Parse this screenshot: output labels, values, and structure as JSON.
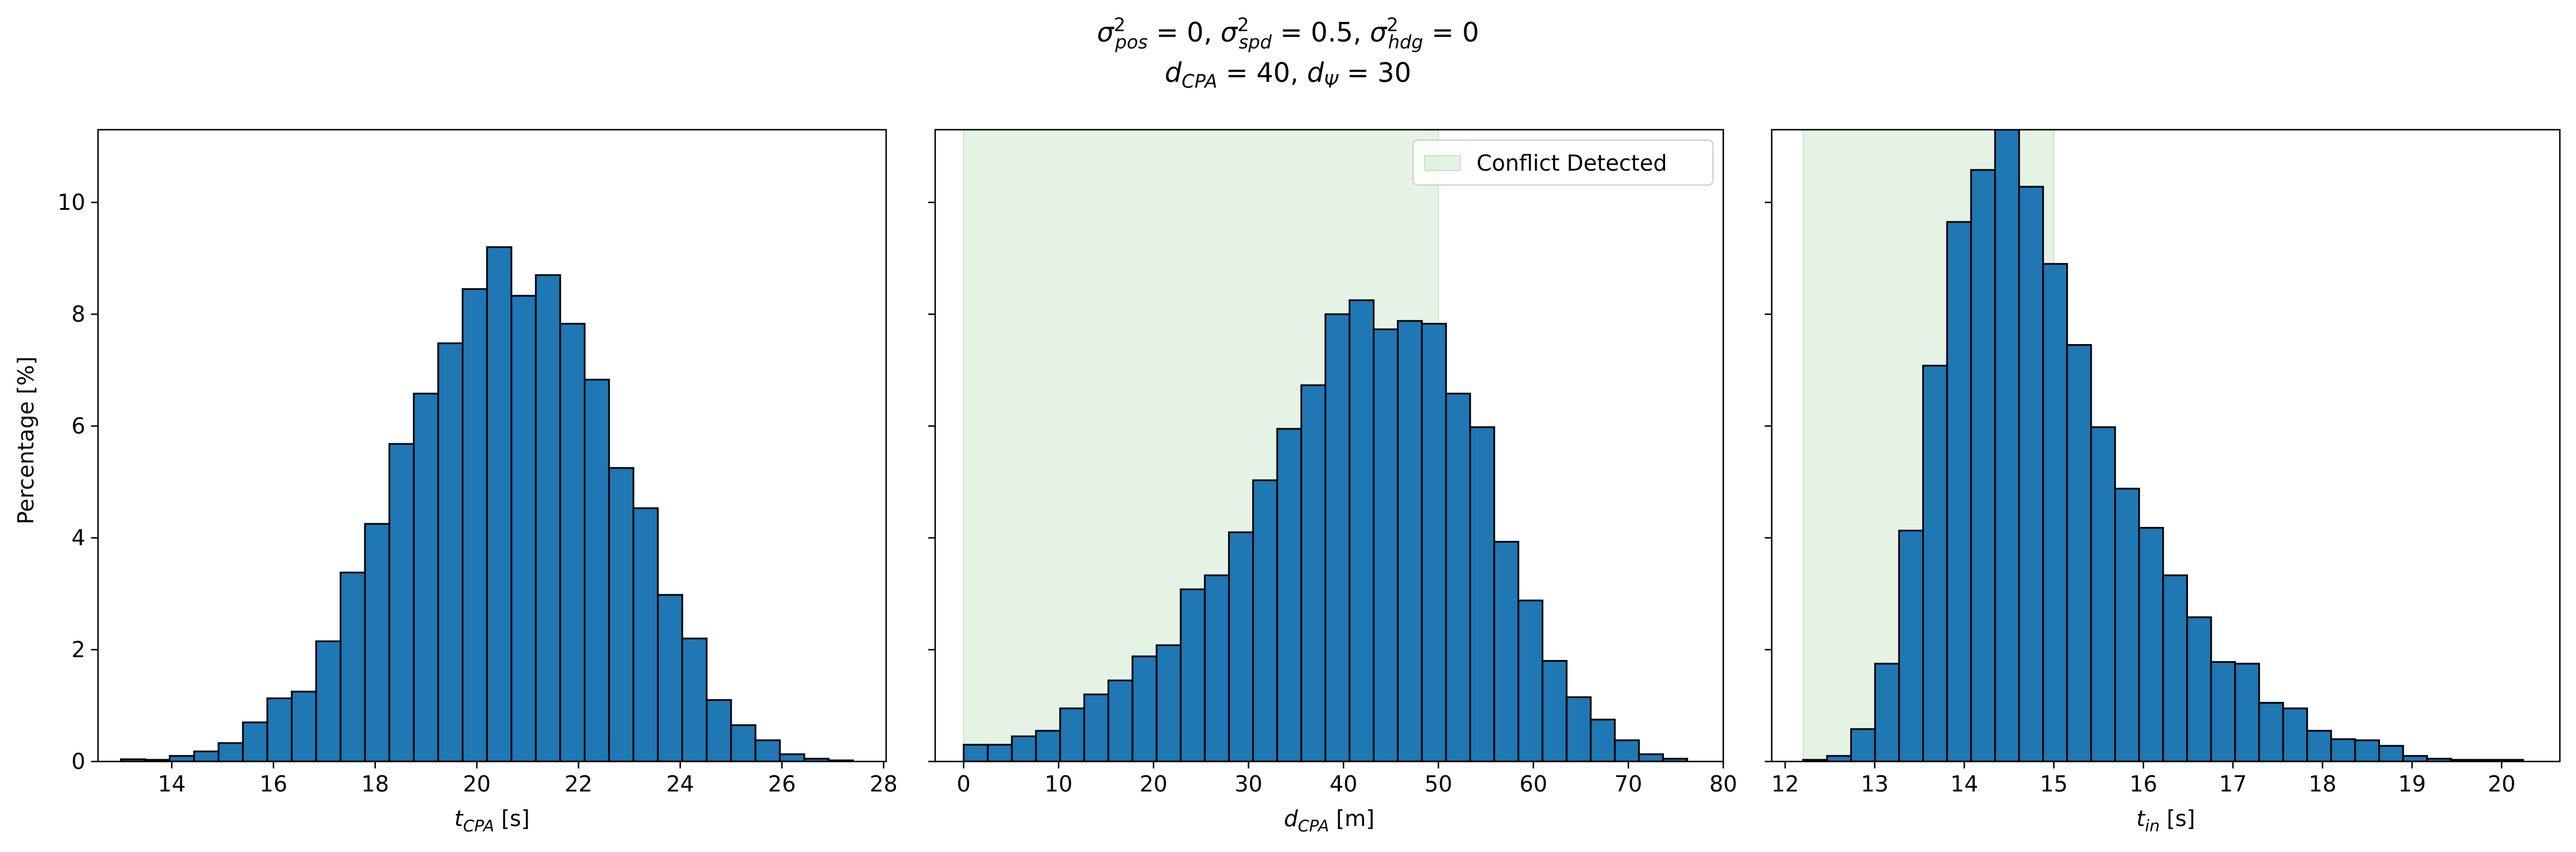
{
  "figure": {
    "title_line1": [
      {
        "base": "σ",
        "sup": "2",
        "sub": "pos",
        "tail": " = 0, "
      },
      {
        "base": "σ",
        "sup": "2",
        "sub": "spd",
        "tail": " = 0.5, "
      },
      {
        "base": "σ",
        "sup": "2",
        "sub": "hdg",
        "tail": " = 0"
      }
    ],
    "title_line2": [
      {
        "base": "d",
        "sub": "CPA",
        "tail": " = 40, "
      },
      {
        "base": "d",
        "sub": "Ψ",
        "tail": " = 30"
      }
    ],
    "ylabel": "Percentage [%]",
    "shade_color": "#2ca02c",
    "bar_color": "#1f77b4",
    "edge_color": "#000000"
  },
  "chart_data": [
    {
      "type": "bar",
      "xlabel": {
        "base": "t",
        "sub": "CPA",
        "unit": " [s]"
      },
      "ylabel": "Percentage [%]",
      "xlim": [
        12.55,
        28.05
      ],
      "ylim": [
        0,
        11.3
      ],
      "xticks": [
        14,
        16,
        18,
        20,
        22,
        24,
        26,
        28
      ],
      "yticks": [
        0,
        2,
        4,
        6,
        8,
        10
      ],
      "bin_start": 13.0,
      "bin_width": 0.48,
      "values": [
        0.04,
        0.03,
        0.1,
        0.18,
        0.33,
        0.7,
        1.13,
        1.25,
        2.15,
        3.38,
        4.25,
        5.68,
        6.58,
        7.48,
        8.45,
        9.2,
        8.33,
        8.7,
        7.83,
        6.83,
        5.25,
        4.53,
        2.98,
        2.2,
        1.1,
        0.65,
        0.38,
        0.13,
        0.05,
        0.02
      ],
      "shaded_range": null,
      "legend": null
    },
    {
      "type": "bar",
      "xlabel": {
        "base": "d",
        "sub": "CPA",
        "unit": " [m]"
      },
      "ylabel": "",
      "xlim": [
        -3,
        80
      ],
      "ylim": [
        0,
        11.3
      ],
      "xticks": [
        0,
        10,
        20,
        30,
        40,
        50,
        60,
        70,
        80
      ],
      "yticks": [
        0,
        2,
        4,
        6,
        8,
        10
      ],
      "bin_start": 0,
      "bin_width": 2.54,
      "values": [
        0.3,
        0.3,
        0.45,
        0.55,
        0.95,
        1.2,
        1.45,
        1.88,
        2.08,
        3.08,
        3.33,
        4.1,
        5.03,
        5.95,
        6.73,
        8.0,
        8.25,
        7.73,
        7.88,
        7.83,
        6.58,
        5.98,
        3.93,
        2.88,
        1.8,
        1.15,
        0.75,
        0.38,
        0.13,
        0.05
      ],
      "shaded_range": [
        0,
        50
      ],
      "legend": {
        "label": "Conflict Detected",
        "position": "upper right"
      }
    },
    {
      "type": "bar",
      "xlabel": {
        "base": "t",
        "sub": "in",
        "unit": " [s]"
      },
      "ylabel": "",
      "xlim": [
        11.85,
        20.65
      ],
      "ylim": [
        0,
        11.3
      ],
      "xticks": [
        12,
        13,
        14,
        15,
        16,
        17,
        18,
        19,
        20
      ],
      "yticks": [
        0,
        2,
        4,
        6,
        8,
        10
      ],
      "bin_start": 12.2,
      "bin_width": 0.268,
      "values": [
        0.03,
        0.1,
        0.58,
        1.75,
        4.13,
        7.08,
        9.65,
        10.58,
        11.3,
        10.28,
        8.9,
        7.45,
        5.98,
        4.88,
        4.18,
        3.33,
        2.58,
        1.78,
        1.75,
        1.05,
        0.95,
        0.55,
        0.4,
        0.38,
        0.28,
        0.1,
        0.05,
        0.03,
        0.03,
        0.03
      ],
      "shaded_range": [
        12.2,
        15.0
      ],
      "legend": null
    }
  ]
}
